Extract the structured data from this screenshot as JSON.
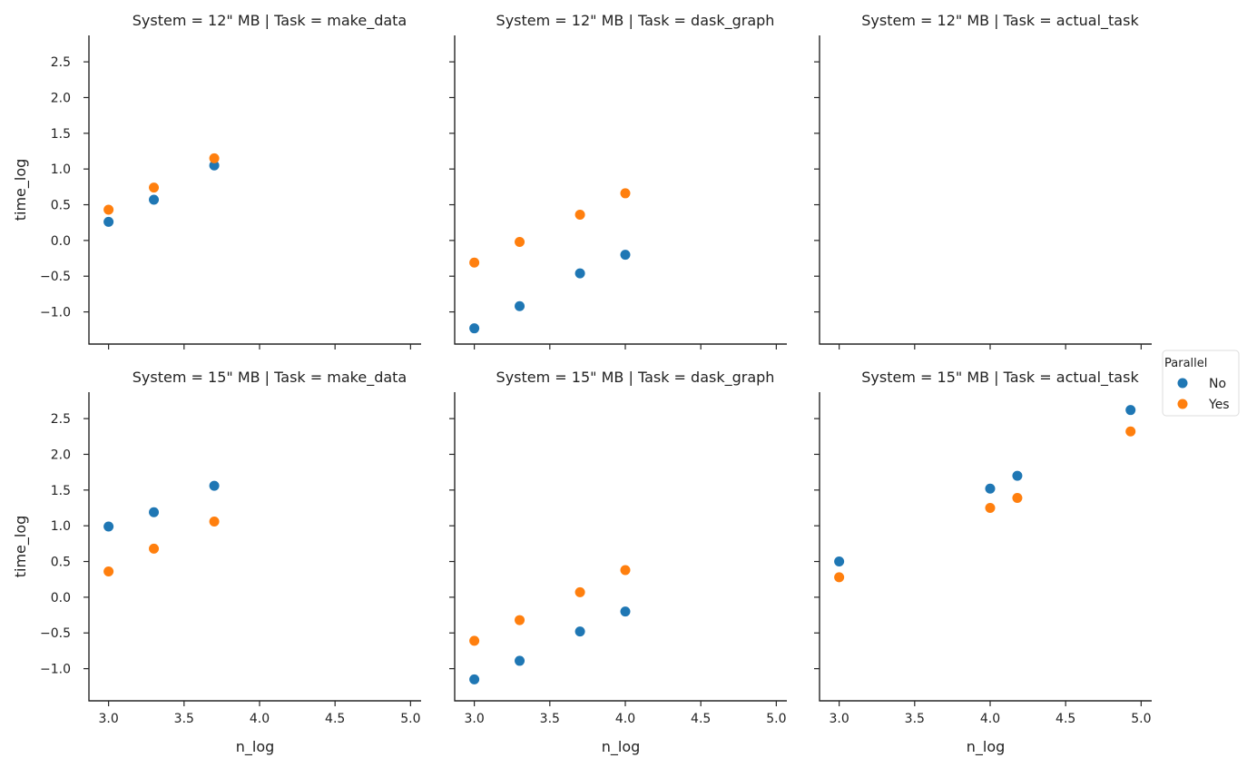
{
  "chart_data": {
    "type": "scatter",
    "layout": "facet-grid",
    "rows": 2,
    "cols": 3,
    "xlabel": "n_log",
    "ylabel": "time_log",
    "xlim": [
      2.87,
      5.07
    ],
    "ylim": [
      -1.45,
      2.87
    ],
    "xticks": [
      3.0,
      3.5,
      4.0,
      4.5,
      5.0
    ],
    "xtick_labels": [
      "3.0",
      "3.5",
      "4.0",
      "4.5",
      "5.0"
    ],
    "yticks": [
      -1.0,
      -0.5,
      0.0,
      0.5,
      1.0,
      1.5,
      2.0,
      2.5
    ],
    "ytick_labels": [
      "−1.0",
      "−0.5",
      "0.0",
      "0.5",
      "1.0",
      "1.5",
      "2.0",
      "2.5"
    ],
    "grid": false,
    "legend": {
      "title": "Parallel",
      "position": "right",
      "entries": [
        {
          "label": "No",
          "color": "#1f77b4"
        },
        {
          "label": "Yes",
          "color": "#ff7f0e"
        }
      ]
    },
    "panels": [
      {
        "title": "System = 12\" MB | Task = make_data",
        "series": [
          {
            "group": "No",
            "x": [
              3.0,
              3.3,
              3.7
            ],
            "y": [
              0.26,
              0.57,
              1.05
            ]
          },
          {
            "group": "Yes",
            "x": [
              3.0,
              3.3,
              3.7
            ],
            "y": [
              0.43,
              0.74,
              1.15
            ]
          }
        ]
      },
      {
        "title": "System = 12\" MB | Task = dask_graph",
        "series": [
          {
            "group": "No",
            "x": [
              3.0,
              3.3,
              3.7,
              4.0
            ],
            "y": [
              -1.23,
              -0.92,
              -0.46,
              -0.2
            ]
          },
          {
            "group": "Yes",
            "x": [
              3.0,
              3.3,
              3.7,
              4.0
            ],
            "y": [
              -0.31,
              -0.02,
              0.36,
              0.66
            ]
          }
        ]
      },
      {
        "title": "System = 12\" MB | Task = actual_task",
        "series": [
          {
            "group": "No",
            "x": [],
            "y": []
          },
          {
            "group": "Yes",
            "x": [],
            "y": []
          }
        ]
      },
      {
        "title": "System = 15\" MB | Task = make_data",
        "series": [
          {
            "group": "No",
            "x": [
              3.0,
              3.3,
              3.7
            ],
            "y": [
              0.99,
              1.19,
              1.56
            ]
          },
          {
            "group": "Yes",
            "x": [
              3.0,
              3.3,
              3.7
            ],
            "y": [
              0.36,
              0.68,
              1.06
            ]
          }
        ]
      },
      {
        "title": "System = 15\" MB | Task = dask_graph",
        "series": [
          {
            "group": "No",
            "x": [
              3.0,
              3.3,
              3.7,
              4.0
            ],
            "y": [
              -1.15,
              -0.89,
              -0.48,
              -0.2
            ]
          },
          {
            "group": "Yes",
            "x": [
              3.0,
              3.3,
              3.7,
              4.0
            ],
            "y": [
              -0.61,
              -0.32,
              0.07,
              0.38
            ]
          }
        ]
      },
      {
        "title": "System = 15\" MB | Task = actual_task",
        "series": [
          {
            "group": "No",
            "x": [
              3.0,
              4.0,
              4.18,
              4.93
            ],
            "y": [
              0.5,
              1.52,
              1.7,
              2.62
            ]
          },
          {
            "group": "Yes",
            "x": [
              3.0,
              4.0,
              4.18,
              4.93
            ],
            "y": [
              0.28,
              1.25,
              1.39,
              2.32
            ]
          }
        ]
      }
    ]
  }
}
